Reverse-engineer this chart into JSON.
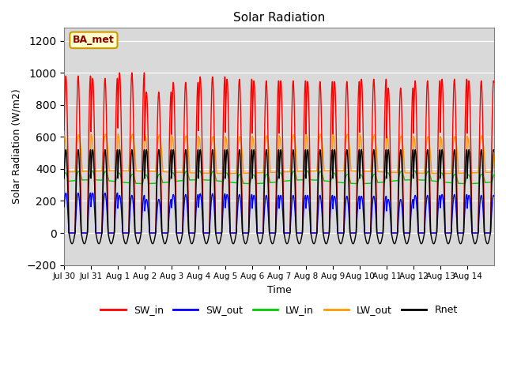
{
  "title": "Solar Radiation",
  "xlabel": "Time",
  "ylabel": "Solar Radiation (W/m2)",
  "ylim": [
    -200,
    1280
  ],
  "yticks": [
    -200,
    0,
    200,
    400,
    600,
    800,
    1000,
    1200
  ],
  "xticklabels": [
    "Jul 30",
    "Jul 31",
    "Aug 1",
    "Aug 2",
    "Aug 3",
    "Aug 4",
    "Aug 5",
    "Aug 6",
    "Aug 7",
    "Aug 8",
    "Aug 9",
    "Aug 10",
    "Aug 11",
    "Aug 12",
    "Aug 13",
    "Aug 14"
  ],
  "legend_label": "BA_met",
  "line_colors": {
    "SW_in": "#ff0000",
    "SW_out": "#0000ff",
    "LW_in": "#00cc00",
    "LW_out": "#ff9900",
    "Rnet": "#000000"
  },
  "line_labels": [
    "SW_in",
    "SW_out",
    "LW_in",
    "LW_out",
    "Rnet"
  ],
  "background_color": "#d9d9d9",
  "figure_background": "#ffffff",
  "SW_in_peaks": [
    980,
    965,
    1000,
    880,
    940,
    975,
    960,
    950,
    950,
    945,
    945,
    960,
    905,
    950,
    960
  ],
  "SW_out_peaks": [
    250,
    250,
    235,
    210,
    240,
    245,
    240,
    235,
    235,
    235,
    230,
    230,
    210,
    235,
    240
  ],
  "LW_in_base": 320,
  "LW_in_peak": 420,
  "LW_out_base": 380,
  "LW_out_peak": 610,
  "Rnet_peak": 520,
  "Rnet_night": -75,
  "n_days": 16,
  "points_per_day": 96
}
